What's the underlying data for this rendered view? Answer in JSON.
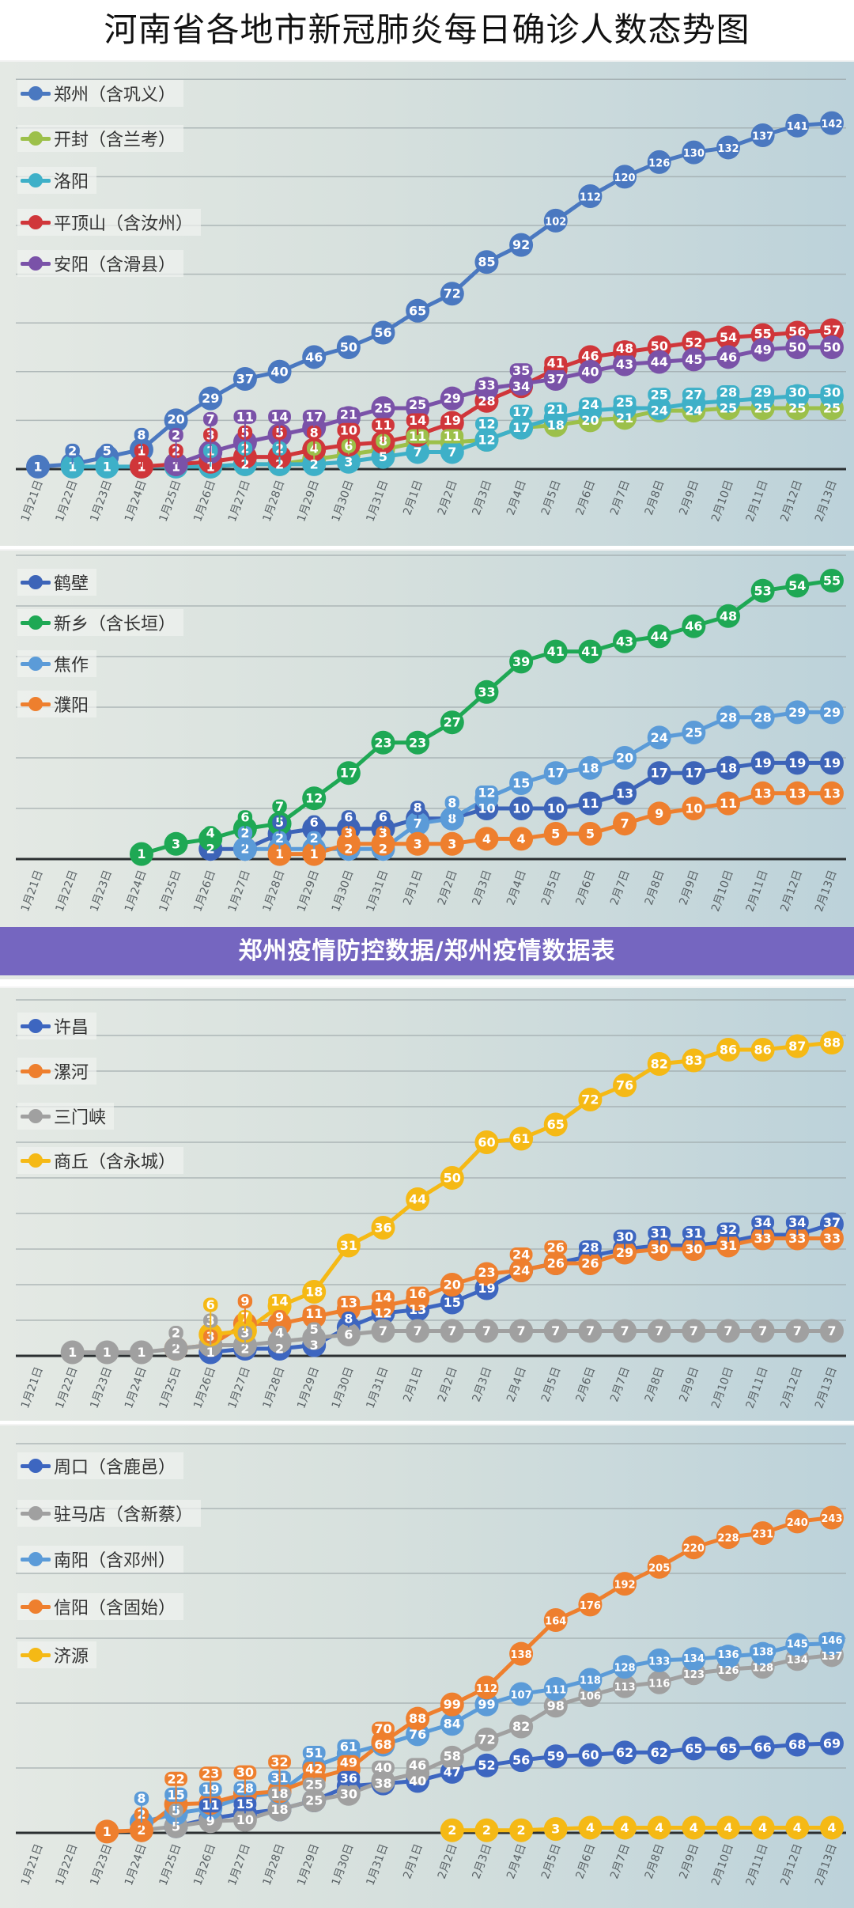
{
  "title": "河南省各地市新冠肺炎每日确诊人数态势图",
  "banner": "郑州疫情防控数据/郑州疫情数据表",
  "chart_data": [
    {
      "type": "line",
      "title": "河南省各地市新冠肺炎每日确诊人数态势图",
      "x": [
        "1月21日",
        "1月22日",
        "1月23日",
        "1月24日",
        "1月25日",
        "1月26日",
        "1月27日",
        "1月28日",
        "1月29日",
        "1月30日",
        "1月31日",
        "2月1日",
        "2月2日",
        "2月3日",
        "2月4日",
        "2月5日",
        "2月6日",
        "2月7日",
        "2月8日",
        "2月9日",
        "2月10日",
        "2月11日",
        "2月12日",
        "2月13日"
      ],
      "ylim": [
        0,
        160
      ],
      "y_grid_step": 20,
      "grid": true,
      "legend": "top-left",
      "series": [
        {
          "name": "郑州（含巩义）",
          "color": "#4a78c0",
          "values": [
            1,
            2,
            5,
            8,
            20,
            29,
            37,
            40,
            46,
            50,
            56,
            65,
            72,
            85,
            92,
            102,
            112,
            120,
            126,
            130,
            132,
            137,
            141,
            142
          ]
        },
        {
          "name": "开封（含兰考）",
          "color": "#9cc04a",
          "values": [
            null,
            null,
            null,
            null,
            null,
            1,
            2,
            2,
            4,
            6,
            8,
            11,
            11,
            12,
            17,
            18,
            20,
            21,
            24,
            24,
            25,
            25,
            25,
            25
          ]
        },
        {
          "name": "洛阳",
          "color": "#3eb0c8",
          "values": [
            null,
            1,
            1,
            1,
            1,
            1,
            2,
            2,
            2,
            3,
            5,
            7,
            7,
            12,
            17,
            21,
            24,
            25,
            25,
            27,
            28,
            29,
            30,
            30
          ]
        },
        {
          "name": "平顶山（含汝州）",
          "color": "#d0363a",
          "values": [
            null,
            null,
            null,
            1,
            2,
            3,
            5,
            5,
            8,
            10,
            11,
            14,
            19,
            28,
            34,
            41,
            46,
            48,
            50,
            52,
            54,
            55,
            56,
            57
          ]
        },
        {
          "name": "安阳（含滑县）",
          "color": "#7a52a8",
          "values": [
            null,
            null,
            null,
            null,
            2,
            7,
            11,
            14,
            17,
            21,
            25,
            25,
            29,
            33,
            35,
            37,
            40,
            43,
            44,
            45,
            46,
            49,
            50,
            50
          ]
        }
      ]
    },
    {
      "type": "line",
      "x": [
        "1月21日",
        "1月22日",
        "1月23日",
        "1月24日",
        "1月25日",
        "1月26日",
        "1月27日",
        "1月28日",
        "1月29日",
        "1月30日",
        "1月31日",
        "2月1日",
        "2月2日",
        "2月3日",
        "2月4日",
        "2月5日",
        "2月6日",
        "2月7日",
        "2月8日",
        "2月9日",
        "2月10日",
        "2月11日",
        "2月12日",
        "2月13日"
      ],
      "ylim": [
        0,
        60
      ],
      "y_grid_step": 10,
      "grid": true,
      "legend": "top-left",
      "series": [
        {
          "name": "鹤壁",
          "color": "#3d64b8",
          "values": [
            null,
            null,
            null,
            null,
            null,
            2,
            2,
            5,
            6,
            6,
            6,
            8,
            8,
            10,
            10,
            10,
            11,
            13,
            17,
            17,
            18,
            19,
            19,
            19
          ]
        },
        {
          "name": "新乡（含长垣）",
          "color": "#1ea854",
          "values": [
            null,
            null,
            null,
            1,
            3,
            4,
            6,
            7,
            12,
            17,
            23,
            23,
            27,
            33,
            39,
            41,
            41,
            43,
            44,
            46,
            48,
            53,
            54,
            55
          ]
        },
        {
          "name": "焦作",
          "color": "#5b9bd8",
          "values": [
            null,
            null,
            null,
            null,
            null,
            null,
            2,
            2,
            2,
            2,
            2,
            7,
            8,
            12,
            15,
            17,
            18,
            20,
            24,
            25,
            28,
            28,
            29,
            29
          ]
        },
        {
          "name": "濮阳",
          "color": "#ee7f2e",
          "values": [
            null,
            null,
            null,
            null,
            null,
            null,
            null,
            1,
            1,
            3,
            3,
            3,
            3,
            4,
            4,
            5,
            5,
            7,
            9,
            10,
            11,
            13,
            13,
            13
          ]
        }
      ]
    },
    {
      "type": "line",
      "x": [
        "1月21日",
        "1月22日",
        "1月23日",
        "1月24日",
        "1月25日",
        "1月26日",
        "1月27日",
        "1月28日",
        "1月29日",
        "1月30日",
        "1月31日",
        "2月1日",
        "2月2日",
        "2月3日",
        "2月4日",
        "2月5日",
        "2月6日",
        "2月7日",
        "2月8日",
        "2月9日",
        "2月10日",
        "2月11日",
        "2月12日",
        "2月13日"
      ],
      "ylim": [
        0,
        100
      ],
      "y_grid_step": 10,
      "grid": true,
      "legend": "top-left",
      "series": [
        {
          "name": "许昌",
          "color": "#3d66c0",
          "values": [
            null,
            null,
            null,
            null,
            null,
            1,
            2,
            2,
            3,
            8,
            12,
            13,
            15,
            19,
            24,
            26,
            28,
            30,
            31,
            31,
            32,
            34,
            34,
            37
          ]
        },
        {
          "name": "漯河",
          "color": "#ee7f2e",
          "values": [
            null,
            null,
            null,
            null,
            2,
            3,
            9,
            9,
            11,
            13,
            14,
            16,
            20,
            23,
            24,
            26,
            26,
            29,
            30,
            30,
            31,
            33,
            33,
            33
          ]
        },
        {
          "name": "三门峡",
          "color": "#a0a0a0",
          "values": [
            null,
            1,
            1,
            1,
            2,
            3,
            3,
            4,
            5,
            6,
            7,
            7,
            7,
            7,
            7,
            7,
            7,
            7,
            7,
            7,
            7,
            7,
            7,
            7
          ]
        },
        {
          "name": "商丘（含永城）",
          "color": "#f5b915",
          "values": [
            null,
            null,
            null,
            null,
            null,
            6,
            7,
            14,
            18,
            31,
            36,
            44,
            50,
            60,
            61,
            65,
            72,
            76,
            82,
            83,
            86,
            86,
            87,
            88
          ]
        }
      ]
    },
    {
      "type": "line",
      "x": [
        "1月21日",
        "1月22日",
        "1月23日",
        "1月24日",
        "1月25日",
        "1月26日",
        "1月27日",
        "1月28日",
        "1月29日",
        "1月30日",
        "1月31日",
        "2月1日",
        "2月2日",
        "2月3日",
        "2月4日",
        "2月5日",
        "2月6日",
        "2月7日",
        "2月8日",
        "2月9日",
        "2月10日",
        "2月11日",
        "2月12日",
        "2月13日"
      ],
      "ylim": [
        0,
        300
      ],
      "y_grid_step": 50,
      "grid": true,
      "legend": "top-left",
      "series": [
        {
          "name": "周口（含鹿邑）",
          "color": "#3d66c0",
          "values": [
            null,
            null,
            null,
            null,
            5,
            11,
            15,
            18,
            25,
            36,
            38,
            40,
            47,
            52,
            56,
            59,
            60,
            62,
            62,
            65,
            65,
            66,
            68,
            69
          ]
        },
        {
          "name": "驻马店（含新蔡）",
          "color": "#a0a0a0",
          "values": [
            null,
            null,
            null,
            2,
            5,
            9,
            10,
            18,
            25,
            30,
            40,
            46,
            58,
            72,
            82,
            98,
            106,
            113,
            116,
            123,
            126,
            128,
            134,
            137
          ]
        },
        {
          "name": "南阳（含邓州）",
          "color": "#5b9bd8",
          "values": [
            null,
            null,
            null,
            8,
            15,
            19,
            28,
            31,
            51,
            61,
            68,
            76,
            84,
            99,
            107,
            111,
            118,
            128,
            133,
            134,
            136,
            138,
            145,
            146
          ]
        },
        {
          "name": "信阳（含固始）",
          "color": "#ee7f2e",
          "values": [
            null,
            null,
            1,
            2,
            22,
            23,
            30,
            32,
            42,
            49,
            70,
            88,
            99,
            112,
            138,
            164,
            176,
            192,
            205,
            220,
            228,
            231,
            240,
            243
          ]
        },
        {
          "name": "济源",
          "color": "#f5b915",
          "values": [
            null,
            null,
            null,
            null,
            null,
            null,
            null,
            null,
            null,
            null,
            null,
            null,
            2,
            2,
            2,
            3,
            4,
            4,
            4,
            4,
            4,
            4,
            4,
            4
          ]
        }
      ]
    }
  ]
}
